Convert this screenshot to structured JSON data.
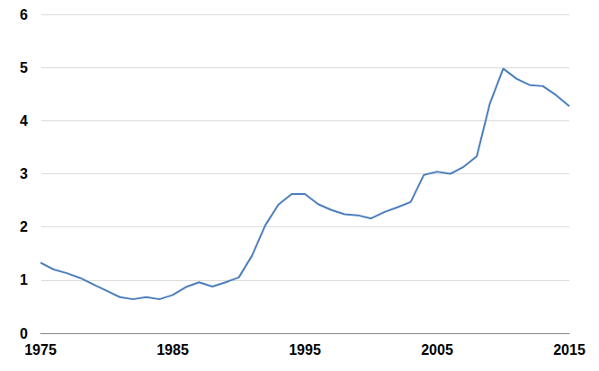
{
  "chart_data": {
    "type": "line",
    "x": [
      1975,
      1976,
      1977,
      1978,
      1979,
      1980,
      1981,
      1982,
      1983,
      1984,
      1985,
      1986,
      1987,
      1988,
      1989,
      1990,
      1991,
      1992,
      1993,
      1994,
      1995,
      1996,
      1997,
      1998,
      1999,
      2000,
      2001,
      2002,
      2003,
      2004,
      2005,
      2006,
      2007,
      2008,
      2009,
      2010,
      2011,
      2012,
      2013,
      2014,
      2015
    ],
    "values": [
      1.33,
      1.2,
      1.13,
      1.04,
      0.92,
      0.8,
      0.68,
      0.64,
      0.68,
      0.64,
      0.72,
      0.87,
      0.96,
      0.88,
      0.96,
      1.05,
      1.46,
      2.03,
      2.42,
      2.62,
      2.62,
      2.43,
      2.32,
      2.24,
      2.22,
      2.16,
      2.28,
      2.37,
      2.47,
      2.98,
      3.04,
      3.0,
      3.13,
      3.33,
      4.33,
      4.98,
      4.79,
      4.67,
      4.65,
      4.48,
      4.27
    ],
    "color": "#4a7ebb",
    "xlim": [
      1975,
      2015
    ],
    "xticks": [
      1975,
      1985,
      1995,
      2005,
      2015
    ],
    "ylim": [
      0,
      6
    ],
    "yticks": [
      0,
      1,
      2,
      3,
      4,
      5,
      6
    ],
    "grid": true
  }
}
